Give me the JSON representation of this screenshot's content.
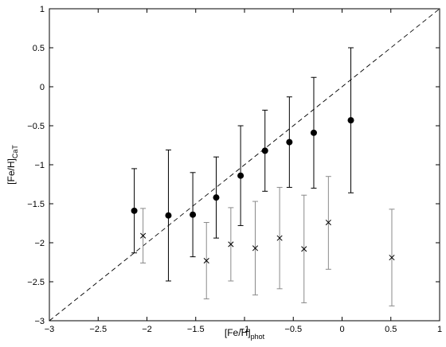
{
  "chart_data": {
    "type": "scatter",
    "title": "",
    "xlabel": {
      "main": "[Fe/H]",
      "sub": "phot"
    },
    "ylabel": {
      "main": "[Fe/H]",
      "sub": "CaT"
    },
    "xlim": [
      -3,
      1
    ],
    "ylim": [
      -3,
      1
    ],
    "xticks": [
      -3,
      -2.5,
      -2,
      -1.5,
      -1,
      -0.5,
      0,
      0.5,
      1
    ],
    "yticks": [
      -3,
      -2.5,
      -2,
      -1.5,
      -1,
      -0.5,
      0,
      0.5,
      1
    ],
    "xtick_labels": [
      "−3",
      "−2.5",
      "−2",
      "−1.5",
      "−1",
      "−0.5",
      "0",
      "0.5",
      "1"
    ],
    "ytick_labels": [
      "−3",
      "−2.5",
      "−2",
      "−1.5",
      "−1",
      "−0.5",
      "0",
      "0.5",
      "1"
    ],
    "grid": false,
    "reference_line": {
      "style": "dashed",
      "x": [
        -3,
        1
      ],
      "y": [
        -3,
        1
      ]
    },
    "series": [
      {
        "marker": "filled-circle",
        "color": "#000000",
        "points": [
          {
            "x": -2.13,
            "y": -1.59,
            "ylow": -2.13,
            "yhigh": -1.05
          },
          {
            "x": -1.78,
            "y": -1.65,
            "ylow": -2.49,
            "yhigh": -0.81
          },
          {
            "x": -1.53,
            "y": -1.64,
            "ylow": -2.18,
            "yhigh": -1.1
          },
          {
            "x": -1.29,
            "y": -1.42,
            "ylow": -1.94,
            "yhigh": -0.9
          },
          {
            "x": -1.04,
            "y": -1.14,
            "ylow": -1.78,
            "yhigh": -0.5
          },
          {
            "x": -0.79,
            "y": -0.82,
            "ylow": -1.34,
            "yhigh": -0.3
          },
          {
            "x": -0.54,
            "y": -0.71,
            "ylow": -1.29,
            "yhigh": -0.13
          },
          {
            "x": -0.29,
            "y": -0.59,
            "ylow": -1.3,
            "yhigh": 0.12
          },
          {
            "x": 0.09,
            "y": -0.43,
            "ylow": -1.36,
            "yhigh": 0.5
          }
        ]
      },
      {
        "marker": "x",
        "color": "#000000",
        "errorbar_color": "#8a8a8a",
        "points": [
          {
            "x": -2.04,
            "y": -1.91,
            "ylow": -2.26,
            "yhigh": -1.56
          },
          {
            "x": -1.39,
            "y": -2.23,
            "ylow": -2.72,
            "yhigh": -1.74
          },
          {
            "x": -1.14,
            "y": -2.02,
            "ylow": -2.49,
            "yhigh": -1.55
          },
          {
            "x": -0.89,
            "y": -2.07,
            "ylow": -2.67,
            "yhigh": -1.47
          },
          {
            "x": -0.64,
            "y": -1.94,
            "ylow": -2.59,
            "yhigh": -1.29
          },
          {
            "x": -0.39,
            "y": -2.08,
            "ylow": -2.77,
            "yhigh": -1.39
          },
          {
            "x": -0.14,
            "y": -1.74,
            "ylow": -2.34,
            "yhigh": -1.15
          },
          {
            "x": 0.51,
            "y": -2.19,
            "ylow": -2.81,
            "yhigh": -1.57
          }
        ]
      }
    ]
  }
}
